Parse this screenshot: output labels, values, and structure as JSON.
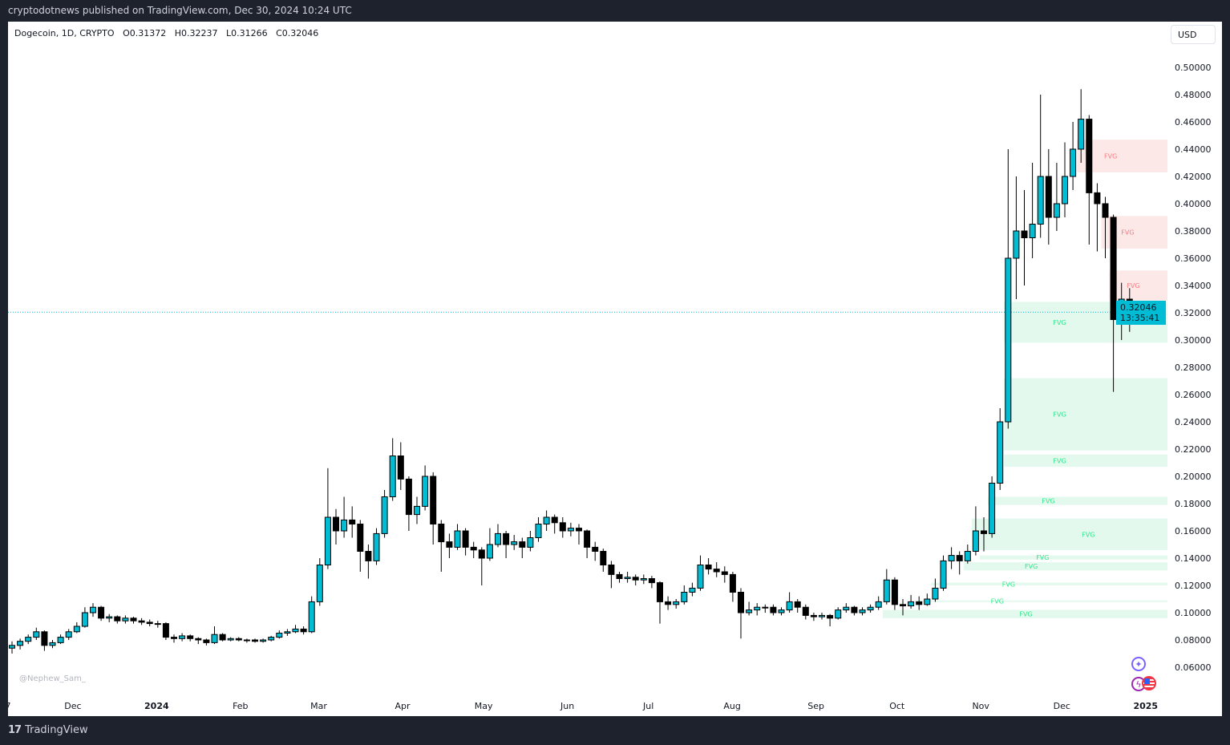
{
  "header": {
    "published": "cryptodotnews published on TradingView.com, Dec 30, 2024 10:24 UTC"
  },
  "legend": {
    "symbol": "Dogecoin, 1D, CRYPTO",
    "open": "O0.31372",
    "high": "H0.32237",
    "low": "L0.31266",
    "close": "C0.32046"
  },
  "currency_button": "USD",
  "price_label": {
    "price": "0.32046",
    "countdown": "13:35:41"
  },
  "watermark": "@Nephew_Sam_",
  "footer": {
    "logo": "17",
    "brand": "TradingView"
  },
  "colors": {
    "up": "#00bcd4",
    "down": "#000000",
    "fvg_bull": "#e3f9ed",
    "fvg_bear": "#fde8e8",
    "fvg_bull_text": "#2ee88a",
    "fvg_bear_text": "#f77c80",
    "price_line": "#00bcd4"
  },
  "icons": [
    "sparkle-icon",
    "lightning-icon",
    "us-flag-icon"
  ],
  "chart_data": {
    "type": "candlestick",
    "title": "",
    "ylim": [
      0.05,
      0.52
    ],
    "y_ticks": [
      "0.50000",
      "0.48000",
      "0.46000",
      "0.44000",
      "0.42000",
      "0.40000",
      "0.38000",
      "0.36000",
      "0.34000",
      "0.32000",
      "0.30000",
      "0.28000",
      "0.26000",
      "0.24000",
      "0.22000",
      "0.20000",
      "0.18000",
      "0.16000",
      "0.14000",
      "0.12000",
      "0.10000",
      "0.08000",
      "0.06000"
    ],
    "x_ticks": [
      {
        "label": "7",
        "day": 0
      },
      {
        "label": "Dec",
        "day": 24
      },
      {
        "label": "2024",
        "day": 55
      },
      {
        "label": "Feb",
        "day": 86
      },
      {
        "label": "Mar",
        "day": 115
      },
      {
        "label": "Apr",
        "day": 146
      },
      {
        "label": "May",
        "day": 176
      },
      {
        "label": "Jun",
        "day": 207
      },
      {
        "label": "Jul",
        "day": 237
      },
      {
        "label": "Aug",
        "day": 268
      },
      {
        "label": "Sep",
        "day": 299
      },
      {
        "label": "Oct",
        "day": 329
      },
      {
        "label": "Nov",
        "day": 360
      },
      {
        "label": "Dec",
        "day": 390
      },
      {
        "label": "2025",
        "day": 421
      }
    ],
    "last_price": 0.32046,
    "ohlc": [
      [
        0.074,
        0.079,
        0.07,
        0.076
      ],
      [
        0.076,
        0.081,
        0.073,
        0.079
      ],
      [
        0.079,
        0.084,
        0.077,
        0.082
      ],
      [
        0.082,
        0.089,
        0.08,
        0.086
      ],
      [
        0.086,
        0.087,
        0.072,
        0.076
      ],
      [
        0.076,
        0.08,
        0.074,
        0.078
      ],
      [
        0.078,
        0.084,
        0.077,
        0.082
      ],
      [
        0.082,
        0.088,
        0.08,
        0.086
      ],
      [
        0.086,
        0.093,
        0.085,
        0.09
      ],
      [
        0.09,
        0.104,
        0.089,
        0.1
      ],
      [
        0.1,
        0.107,
        0.097,
        0.104
      ],
      [
        0.104,
        0.105,
        0.094,
        0.096
      ],
      [
        0.096,
        0.099,
        0.093,
        0.097
      ],
      [
        0.097,
        0.098,
        0.092,
        0.094
      ],
      [
        0.094,
        0.098,
        0.092,
        0.096
      ],
      [
        0.096,
        0.097,
        0.092,
        0.094
      ],
      [
        0.094,
        0.096,
        0.091,
        0.093
      ],
      [
        0.093,
        0.095,
        0.09,
        0.092
      ],
      [
        0.092,
        0.094,
        0.089,
        0.092
      ],
      [
        0.092,
        0.093,
        0.08,
        0.082
      ],
      [
        0.082,
        0.084,
        0.078,
        0.081
      ],
      [
        0.081,
        0.085,
        0.079,
        0.083
      ],
      [
        0.083,
        0.084,
        0.079,
        0.081
      ],
      [
        0.081,
        0.082,
        0.077,
        0.08
      ],
      [
        0.08,
        0.081,
        0.076,
        0.078
      ],
      [
        0.078,
        0.09,
        0.077,
        0.084
      ],
      [
        0.084,
        0.085,
        0.079,
        0.08
      ],
      [
        0.08,
        0.082,
        0.079,
        0.081
      ],
      [
        0.081,
        0.082,
        0.079,
        0.08
      ],
      [
        0.08,
        0.081,
        0.078,
        0.08
      ],
      [
        0.08,
        0.081,
        0.078,
        0.079
      ],
      [
        0.079,
        0.081,
        0.078,
        0.08
      ],
      [
        0.08,
        0.083,
        0.079,
        0.082
      ],
      [
        0.082,
        0.087,
        0.081,
        0.085
      ],
      [
        0.085,
        0.088,
        0.083,
        0.086
      ],
      [
        0.086,
        0.091,
        0.085,
        0.088
      ],
      [
        0.088,
        0.09,
        0.084,
        0.086
      ],
      [
        0.086,
        0.112,
        0.085,
        0.108
      ],
      [
        0.108,
        0.14,
        0.105,
        0.135
      ],
      [
        0.135,
        0.206,
        0.132,
        0.17
      ],
      [
        0.17,
        0.176,
        0.15,
        0.16
      ],
      [
        0.16,
        0.185,
        0.155,
        0.168
      ],
      [
        0.168,
        0.178,
        0.155,
        0.165
      ],
      [
        0.165,
        0.168,
        0.13,
        0.145
      ],
      [
        0.145,
        0.15,
        0.125,
        0.138
      ],
      [
        0.138,
        0.162,
        0.135,
        0.158
      ],
      [
        0.158,
        0.19,
        0.155,
        0.185
      ],
      [
        0.185,
        0.228,
        0.182,
        0.215
      ],
      [
        0.215,
        0.225,
        0.19,
        0.198
      ],
      [
        0.198,
        0.2,
        0.16,
        0.172
      ],
      [
        0.172,
        0.185,
        0.165,
        0.178
      ],
      [
        0.178,
        0.208,
        0.175,
        0.2
      ],
      [
        0.2,
        0.203,
        0.15,
        0.165
      ],
      [
        0.165,
        0.168,
        0.13,
        0.152
      ],
      [
        0.152,
        0.158,
        0.14,
        0.148
      ],
      [
        0.148,
        0.165,
        0.146,
        0.16
      ],
      [
        0.16,
        0.162,
        0.142,
        0.148
      ],
      [
        0.148,
        0.152,
        0.14,
        0.146
      ],
      [
        0.146,
        0.148,
        0.12,
        0.14
      ],
      [
        0.14,
        0.162,
        0.138,
        0.15
      ],
      [
        0.15,
        0.165,
        0.148,
        0.158
      ],
      [
        0.158,
        0.16,
        0.14,
        0.15
      ],
      [
        0.15,
        0.157,
        0.146,
        0.152
      ],
      [
        0.152,
        0.155,
        0.14,
        0.148
      ],
      [
        0.148,
        0.16,
        0.145,
        0.155
      ],
      [
        0.155,
        0.17,
        0.152,
        0.165
      ],
      [
        0.165,
        0.175,
        0.16,
        0.17
      ],
      [
        0.17,
        0.172,
        0.158,
        0.166
      ],
      [
        0.166,
        0.17,
        0.155,
        0.16
      ],
      [
        0.16,
        0.166,
        0.156,
        0.162
      ],
      [
        0.162,
        0.165,
        0.15,
        0.16
      ],
      [
        0.16,
        0.161,
        0.14,
        0.148
      ],
      [
        0.148,
        0.152,
        0.138,
        0.145
      ],
      [
        0.145,
        0.147,
        0.13,
        0.135
      ],
      [
        0.135,
        0.138,
        0.118,
        0.128
      ],
      [
        0.128,
        0.13,
        0.122,
        0.125
      ],
      [
        0.125,
        0.13,
        0.122,
        0.126
      ],
      [
        0.126,
        0.128,
        0.12,
        0.124
      ],
      [
        0.124,
        0.128,
        0.121,
        0.125
      ],
      [
        0.125,
        0.127,
        0.118,
        0.122
      ],
      [
        0.122,
        0.123,
        0.092,
        0.108
      ],
      [
        0.108,
        0.112,
        0.102,
        0.106
      ],
      [
        0.106,
        0.11,
        0.103,
        0.108
      ],
      [
        0.108,
        0.12,
        0.106,
        0.115
      ],
      [
        0.115,
        0.122,
        0.112,
        0.118
      ],
      [
        0.118,
        0.142,
        0.116,
        0.135
      ],
      [
        0.135,
        0.14,
        0.128,
        0.132
      ],
      [
        0.132,
        0.137,
        0.126,
        0.13
      ],
      [
        0.13,
        0.134,
        0.122,
        0.128
      ],
      [
        0.128,
        0.13,
        0.108,
        0.115
      ],
      [
        0.115,
        0.118,
        0.081,
        0.1
      ],
      [
        0.1,
        0.108,
        0.098,
        0.102
      ],
      [
        0.102,
        0.107,
        0.098,
        0.104
      ],
      [
        0.104,
        0.106,
        0.1,
        0.104
      ],
      [
        0.104,
        0.106,
        0.098,
        0.1
      ],
      [
        0.1,
        0.104,
        0.098,
        0.102
      ],
      [
        0.102,
        0.115,
        0.1,
        0.108
      ],
      [
        0.108,
        0.11,
        0.1,
        0.104
      ],
      [
        0.104,
        0.106,
        0.095,
        0.098
      ],
      [
        0.098,
        0.1,
        0.094,
        0.097
      ],
      [
        0.097,
        0.1,
        0.095,
        0.098
      ],
      [
        0.098,
        0.099,
        0.09,
        0.096
      ],
      [
        0.096,
        0.104,
        0.095,
        0.102
      ],
      [
        0.102,
        0.107,
        0.1,
        0.104
      ],
      [
        0.104,
        0.105,
        0.098,
        0.1
      ],
      [
        0.1,
        0.104,
        0.098,
        0.102
      ],
      [
        0.102,
        0.106,
        0.1,
        0.104
      ],
      [
        0.104,
        0.112,
        0.102,
        0.108
      ],
      [
        0.108,
        0.132,
        0.106,
        0.124
      ],
      [
        0.124,
        0.126,
        0.102,
        0.106
      ],
      [
        0.106,
        0.11,
        0.098,
        0.105
      ],
      [
        0.105,
        0.113,
        0.103,
        0.108
      ],
      [
        0.108,
        0.112,
        0.102,
        0.106
      ],
      [
        0.106,
        0.114,
        0.105,
        0.11
      ],
      [
        0.11,
        0.125,
        0.108,
        0.118
      ],
      [
        0.118,
        0.142,
        0.116,
        0.138
      ],
      [
        0.138,
        0.148,
        0.132,
        0.142
      ],
      [
        0.142,
        0.145,
        0.128,
        0.138
      ],
      [
        0.138,
        0.15,
        0.136,
        0.145
      ],
      [
        0.145,
        0.178,
        0.142,
        0.16
      ],
      [
        0.16,
        0.17,
        0.145,
        0.158
      ],
      [
        0.158,
        0.2,
        0.155,
        0.195
      ],
      [
        0.195,
        0.25,
        0.19,
        0.24
      ],
      [
        0.24,
        0.44,
        0.235,
        0.36
      ],
      [
        0.36,
        0.42,
        0.33,
        0.38
      ],
      [
        0.38,
        0.41,
        0.34,
        0.375
      ],
      [
        0.375,
        0.43,
        0.36,
        0.385
      ],
      [
        0.385,
        0.48,
        0.375,
        0.42
      ],
      [
        0.42,
        0.44,
        0.37,
        0.39
      ],
      [
        0.39,
        0.43,
        0.38,
        0.4
      ],
      [
        0.4,
        0.445,
        0.39,
        0.42
      ],
      [
        0.42,
        0.46,
        0.41,
        0.44
      ],
      [
        0.44,
        0.484,
        0.43,
        0.462
      ],
      [
        0.462,
        0.465,
        0.37,
        0.408
      ],
      [
        0.408,
        0.415,
        0.365,
        0.4
      ],
      [
        0.4,
        0.405,
        0.36,
        0.39
      ],
      [
        0.39,
        0.392,
        0.262,
        0.315
      ],
      [
        0.315,
        0.342,
        0.3,
        0.33
      ],
      [
        0.33,
        0.338,
        0.306,
        0.312
      ],
      [
        0.31372,
        0.32237,
        0.31266,
        0.32046
      ]
    ],
    "fvg_zones": [
      {
        "label": "FVG",
        "kind": "bear",
        "top": 0.447,
        "bottom": 0.423,
        "start": 132
      },
      {
        "label": "FVG",
        "kind": "bear",
        "top": 0.391,
        "bottom": 0.367,
        "start": 135
      },
      {
        "label": "FVG",
        "kind": "bear",
        "top": 0.351,
        "bottom": 0.329,
        "start": 136
      },
      {
        "label": "FVG",
        "kind": "bull",
        "top": 0.328,
        "bottom": 0.298,
        "start": 123
      },
      {
        "label": "FVG",
        "kind": "bull",
        "top": 0.272,
        "bottom": 0.219,
        "start": 123
      },
      {
        "label": "FVG",
        "kind": "bull",
        "top": 0.216,
        "bottom": 0.207,
        "start": 123
      },
      {
        "label": "FVG",
        "kind": "bull",
        "top": 0.185,
        "bottom": 0.179,
        "start": 121
      },
      {
        "label": "FVG",
        "kind": "bull",
        "top": 0.169,
        "bottom": 0.146,
        "start": 120
      },
      {
        "label": "FVG",
        "kind": "bull",
        "top": 0.169,
        "bottom": 0.146,
        "start": 119
      },
      {
        "label": "FVG",
        "kind": "bull",
        "top": 0.142,
        "bottom": 0.139,
        "start": 120
      },
      {
        "label": "FVG",
        "kind": "bull",
        "top": 0.137,
        "bottom": 0.131,
        "start": 118
      },
      {
        "label": "FVG",
        "kind": "bull",
        "top": 0.122,
        "bottom": 0.12,
        "start": 114
      },
      {
        "label": "FVG",
        "kind": "bull",
        "top": 0.109,
        "bottom": 0.108,
        "start": 112
      },
      {
        "label": "FVG",
        "kind": "bull",
        "top": 0.102,
        "bottom": 0.096,
        "start": 110
      },
      {
        "label": "FVG",
        "kind": "bull",
        "top": 0.102,
        "bottom": 0.096,
        "start": 108
      }
    ]
  }
}
